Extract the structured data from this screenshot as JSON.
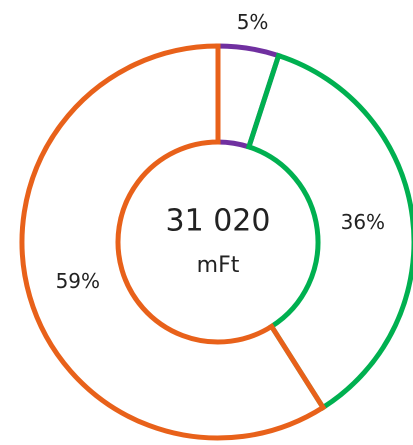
{
  "chart_data": {
    "type": "donut",
    "center_text": "31 020",
    "center_subtext": "mFt",
    "categories": [
      "5%",
      "36%",
      "59%"
    ],
    "values": [
      5,
      36,
      59
    ],
    "colors": [
      "#7030a0",
      "#00b050",
      "#e8611a"
    ]
  }
}
